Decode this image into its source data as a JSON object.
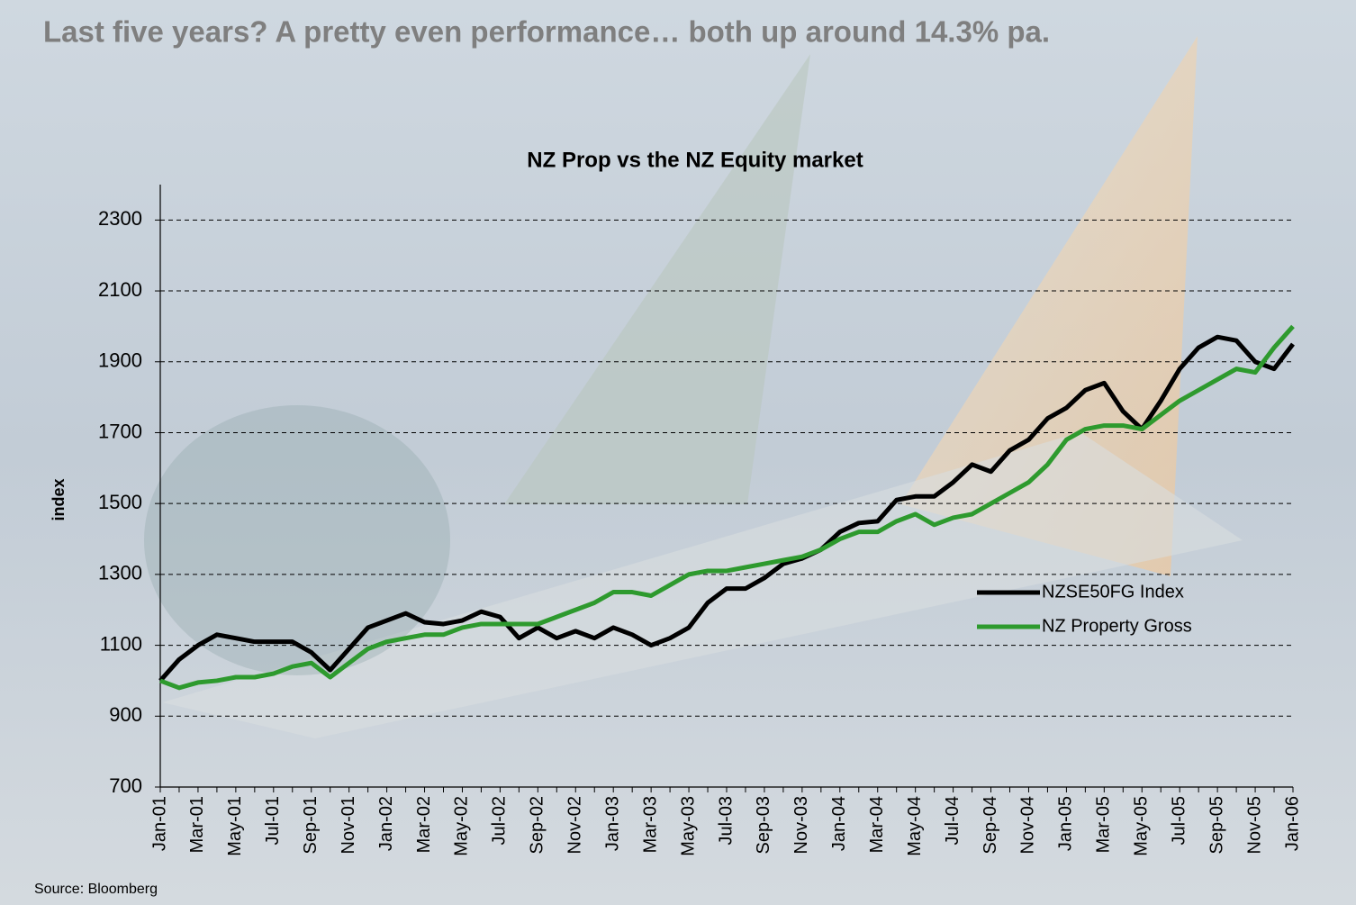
{
  "slide_title": "Last five years?  A pretty even performance… both up around 14.3% pa.",
  "source": "Source: Bloomberg",
  "chart_data": {
    "type": "line",
    "title": "NZ Prop vs the NZ Equity market",
    "y_label": "index",
    "categories": [
      "Jan-01",
      null,
      "Mar-01",
      null,
      "May-01",
      null,
      "Jul-01",
      null,
      "Sep-01",
      null,
      "Nov-01",
      null,
      "Jan-02",
      null,
      "Mar-02",
      null,
      "May-02",
      null,
      "Jul-02",
      null,
      "Sep-02",
      null,
      "Nov-02",
      null,
      "Jan-03",
      null,
      "Mar-03",
      null,
      "May-03",
      null,
      "Jul-03",
      null,
      "Sep-03",
      null,
      "Nov-03",
      null,
      "Jan-04",
      null,
      "Mar-04",
      null,
      "May-04",
      null,
      "Jul-04",
      null,
      "Sep-04",
      null,
      "Nov-04",
      null,
      "Jan-05",
      null,
      "Mar-05",
      null,
      "May-05",
      null,
      "Jul-05",
      null,
      "Sep-05",
      null,
      "Nov-05",
      null,
      "Jan-06"
    ],
    "series": [
      {
        "name": "NZSE50FG Index",
        "color": "#000000",
        "values": [
          1000,
          1060,
          1100,
          1130,
          1120,
          1110,
          1110,
          1110,
          1080,
          1030,
          1090,
          1150,
          1170,
          1190,
          1165,
          1160,
          1170,
          1195,
          1180,
          1120,
          1150,
          1120,
          1140,
          1120,
          1150,
          1130,
          1100,
          1120,
          1150,
          1220,
          1260,
          1260,
          1290,
          1330,
          1345,
          1370,
          1420,
          1445,
          1450,
          1510,
          1520,
          1520,
          1560,
          1610,
          1590,
          1650,
          1680,
          1740,
          1770,
          1820,
          1840,
          1760,
          1710,
          1790,
          1880,
          1940,
          1970,
          1960,
          1900,
          1880,
          1950
        ]
      },
      {
        "name": "NZ Property Gross",
        "color": "#2e9a2e",
        "values": [
          1000,
          980,
          995,
          1000,
          1010,
          1010,
          1020,
          1040,
          1050,
          1010,
          1050,
          1090,
          1110,
          1120,
          1130,
          1130,
          1150,
          1160,
          1160,
          1160,
          1160,
          1180,
          1200,
          1220,
          1250,
          1250,
          1240,
          1270,
          1300,
          1310,
          1310,
          1320,
          1330,
          1340,
          1350,
          1370,
          1400,
          1420,
          1420,
          1450,
          1470,
          1440,
          1460,
          1470,
          1500,
          1530,
          1560,
          1610,
          1680,
          1710,
          1720,
          1720,
          1710,
          1750,
          1790,
          1820,
          1850,
          1880,
          1870,
          1940,
          2000
        ]
      }
    ],
    "ylim": [
      700,
      2400
    ],
    "yticks": [
      700,
      900,
      1100,
      1300,
      1500,
      1700,
      1900,
      2100,
      2300
    ],
    "grid": true,
    "legend": "right"
  }
}
